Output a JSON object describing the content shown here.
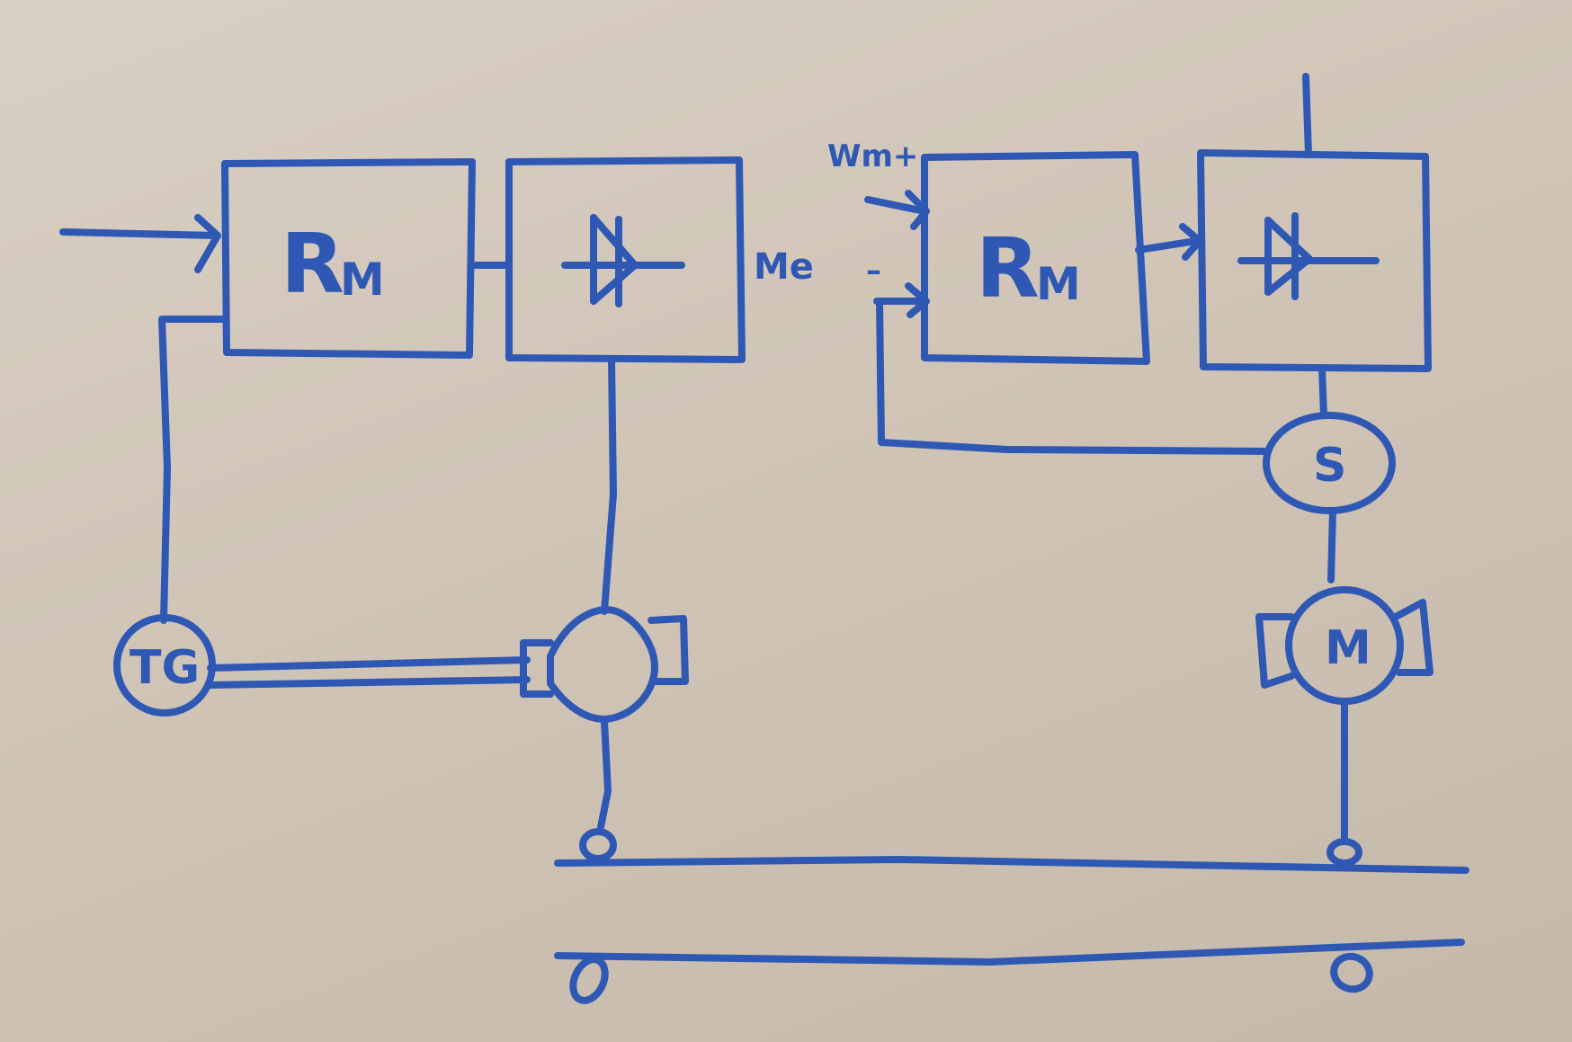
{
  "left_circuit": {
    "controller_label": "R",
    "controller_sub": "M",
    "output_label": "Me",
    "tacho_label": "TG"
  },
  "right_circuit": {
    "input_plus_label": "Wm+",
    "input_minus_label": "–",
    "controller_label": "R",
    "controller_sub": "M",
    "sensor_label": "S",
    "motor_label": "M"
  },
  "colors": {
    "ink": "#2f58b4",
    "board": "#d2c8bb"
  }
}
